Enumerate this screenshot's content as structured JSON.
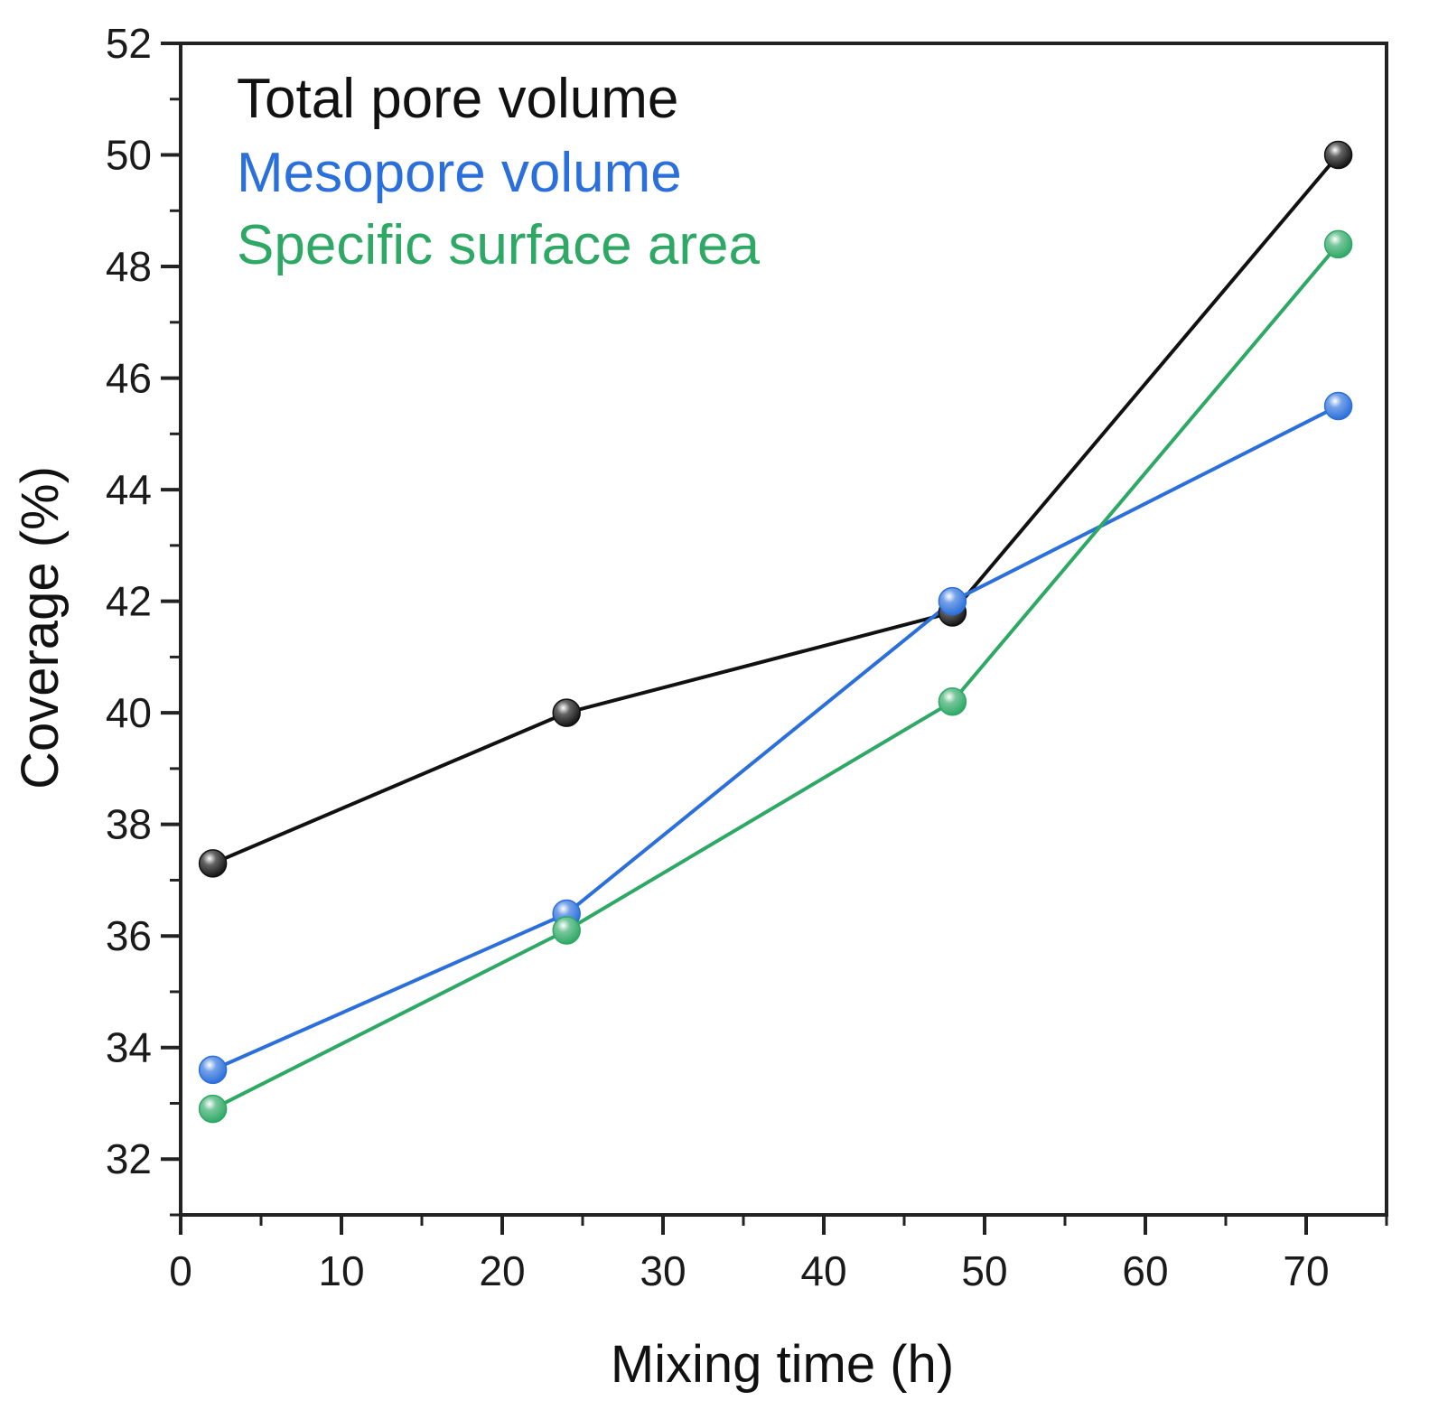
{
  "chart_data": {
    "type": "line",
    "title": "",
    "xlabel": "Mixing time (h)",
    "ylabel": "Coverage (%)",
    "xlim": [
      0,
      75
    ],
    "ylim": [
      31,
      52
    ],
    "x_ticks": [
      0,
      10,
      20,
      30,
      40,
      50,
      60,
      70
    ],
    "x_tick_labels": [
      "0",
      "10",
      "20",
      "30",
      "40",
      "50",
      "60",
      "70"
    ],
    "y_ticks": [
      32,
      34,
      36,
      38,
      40,
      42,
      44,
      46,
      48,
      50,
      52
    ],
    "y_tick_labels": [
      "32",
      "34",
      "36",
      "38",
      "40",
      "42",
      "44",
      "46",
      "48",
      "50",
      "52"
    ],
    "grid": false,
    "legend_position": "top-left",
    "x": [
      2,
      24,
      48,
      72
    ],
    "series": [
      {
        "name": "Total pore volume",
        "color": "#111111",
        "values": [
          37.3,
          40.0,
          41.8,
          50.0
        ]
      },
      {
        "name": "Mesopore volume",
        "color": "#2a6fdb",
        "values": [
          33.6,
          36.4,
          42.0,
          45.5
        ]
      },
      {
        "name": "Specific surface area",
        "color": "#2ea865",
        "values": [
          32.9,
          36.1,
          40.2,
          48.4
        ]
      }
    ]
  }
}
